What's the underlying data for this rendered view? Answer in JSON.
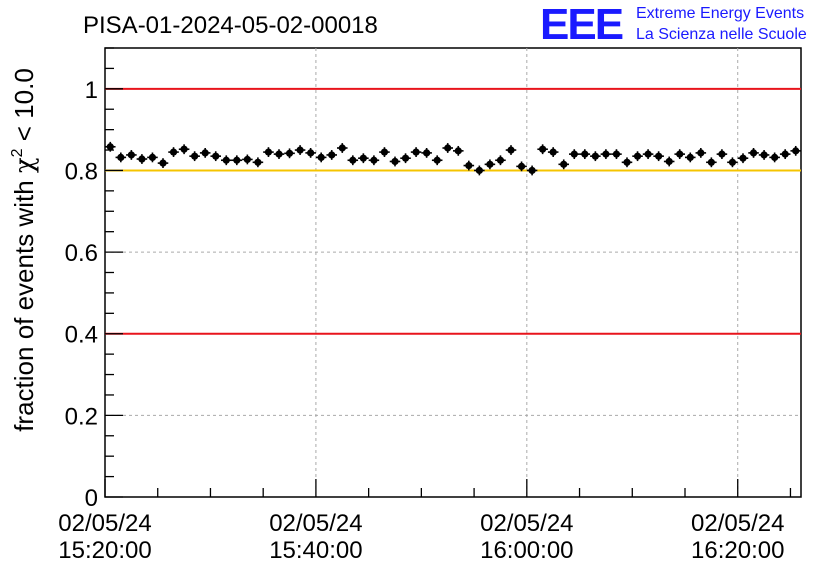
{
  "header": {
    "run_title": "PISA-01-2024-05-02-00018",
    "logo_text": "EEE",
    "logo_line1": "Extreme Energy Events",
    "logo_line2": "La Scienza nelle Scuole"
  },
  "chart_data": {
    "type": "scatter",
    "title": "PISA-01-2024-05-02-00018",
    "xlabel": "",
    "ylabel": "fraction of events with χ² < 10.0",
    "ylabel_parts": {
      "pre": "fraction of events with ",
      "sym": "χ",
      "sup": "2",
      "post": " < 10.0"
    },
    "y_range": [
      0,
      1.1
    ],
    "x_range": [
      "02/05/24 15:20:00",
      "02/05/24 16:26:00"
    ],
    "x_unit": "minutes after 02/05/24 15:20:00",
    "x_ticks": [
      {
        "x": 0,
        "date": "02/05/24",
        "time": "15:20:00"
      },
      {
        "x": 20,
        "date": "02/05/24",
        "time": "15:40:00"
      },
      {
        "x": 40,
        "date": "02/05/24",
        "time": "16:00:00"
      },
      {
        "x": 60,
        "date": "02/05/24",
        "time": "16:20:00"
      }
    ],
    "y_ticks": [
      {
        "v": 0,
        "label": "0"
      },
      {
        "v": 0.2,
        "label": "0.2"
      },
      {
        "v": 0.4,
        "label": "0.4"
      },
      {
        "v": 0.6,
        "label": "0.6"
      },
      {
        "v": 0.8,
        "label": "0.8"
      },
      {
        "v": 1,
        "label": "1"
      }
    ],
    "grid": true,
    "reference_lines": [
      {
        "y": 1.0,
        "color": "#e8141c"
      },
      {
        "y": 0.8,
        "color": "#f5c400"
      },
      {
        "y": 0.4,
        "color": "#e8141c"
      }
    ],
    "marker_color": "#000000",
    "error_bar_halfwidth_min": 0.5,
    "error_bar_halfheight": 0.012,
    "series": [
      {
        "x": [
          0.5,
          1.5,
          2.5,
          3.5,
          4.5,
          5.5,
          6.5,
          7.5,
          8.5,
          9.5,
          10.5,
          11.5,
          12.5,
          13.5,
          14.5,
          15.5,
          16.5,
          17.5,
          18.5,
          19.5,
          20.5,
          21.5,
          22.5,
          23.5,
          24.5,
          25.5,
          26.5,
          27.5,
          28.5,
          29.5,
          30.5,
          31.5,
          32.5,
          33.5,
          34.5,
          35.5,
          36.5,
          37.5,
          38.5,
          39.5,
          40.5,
          41.5,
          42.5,
          43.5,
          44.5,
          45.5,
          46.5,
          47.5,
          48.5,
          49.5,
          50.5,
          51.5,
          52.5,
          53.5,
          54.5,
          55.5,
          56.5,
          57.5,
          58.5,
          59.5,
          60.5,
          61.5,
          62.5,
          63.5,
          64.5,
          65.5
        ],
        "y": [
          0.858,
          0.832,
          0.838,
          0.828,
          0.832,
          0.818,
          0.845,
          0.852,
          0.835,
          0.843,
          0.835,
          0.825,
          0.825,
          0.827,
          0.82,
          0.845,
          0.84,
          0.842,
          0.85,
          0.843,
          0.832,
          0.838,
          0.855,
          0.825,
          0.83,
          0.825,
          0.845,
          0.822,
          0.83,
          0.845,
          0.843,
          0.825,
          0.855,
          0.848,
          0.812,
          0.8,
          0.815,
          0.825,
          0.85,
          0.81,
          0.8,
          0.852,
          0.845,
          0.815,
          0.84,
          0.84,
          0.835,
          0.84,
          0.84,
          0.82,
          0.835,
          0.84,
          0.835,
          0.822,
          0.84,
          0.832,
          0.843,
          0.82,
          0.84,
          0.82,
          0.83,
          0.843,
          0.838,
          0.832,
          0.84,
          0.848
        ]
      }
    ]
  }
}
